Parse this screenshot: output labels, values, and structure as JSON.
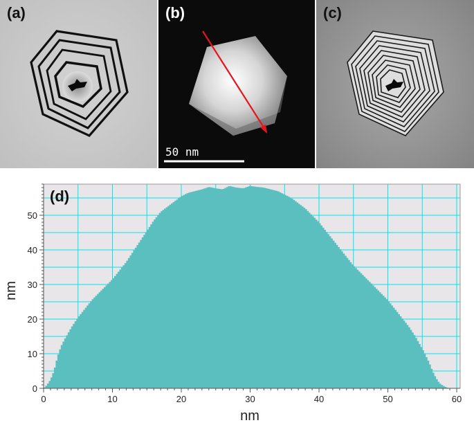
{
  "figure": {
    "panels": [
      {
        "label": "(a)",
        "kind": "holography-phase-contour",
        "label_color": "#111111"
      },
      {
        "label": "(b)",
        "kind": "haadf-stem-image",
        "label_color": "#ffffff"
      },
      {
        "label": "(c)",
        "kind": "holography-phase-contour-amplified",
        "label_color": "#111111"
      }
    ],
    "scale_bar": {
      "label": "50 nm",
      "color": "#ffffff"
    },
    "line_profile_arrow_color": "#e8141b"
  },
  "chart_data": {
    "type": "area",
    "panel_label": "(d)",
    "xlabel": "nm",
    "ylabel": "nm",
    "xlim": [
      0,
      60.5
    ],
    "ylim": [
      0,
      59
    ],
    "xticks": [
      0,
      10,
      20,
      30,
      40,
      50,
      60
    ],
    "yticks": [
      0,
      10,
      20,
      30,
      40,
      50
    ],
    "grid": true,
    "grid_color": "#00e5ee",
    "plot_background": "#e8e6e8",
    "fill_color": "#5bbfbf",
    "x": [
      0,
      0.5,
      1,
      1.5,
      2,
      2.5,
      3,
      4,
      5,
      6,
      7,
      8,
      9,
      10,
      11,
      12,
      13,
      14,
      15,
      16,
      17,
      18,
      19,
      20,
      21,
      22,
      23,
      24,
      25,
      26,
      27,
      28,
      29,
      30,
      31,
      32,
      33,
      34,
      35,
      36,
      37,
      38,
      39,
      40,
      41,
      42,
      43,
      44,
      45,
      46,
      47,
      48,
      49,
      50,
      51,
      52,
      53,
      54,
      55,
      56,
      56.5,
      57,
      57.5,
      58,
      58.5,
      59,
      59.5
    ],
    "y": [
      0,
      1,
      2.5,
      5,
      9,
      12,
      14,
      17.5,
      20.5,
      23,
      25.5,
      27.5,
      29.5,
      31.5,
      34,
      36.5,
      39.5,
      42.5,
      45.5,
      48.5,
      51,
      52.5,
      54,
      55.5,
      56.5,
      57,
      57.5,
      58.2,
      57.8,
      57.5,
      58.5,
      58,
      57.8,
      58.5,
      58.2,
      58,
      57.5,
      57,
      56,
      55,
      53.5,
      52,
      50,
      48,
      45.5,
      43,
      40.5,
      38,
      35.5,
      33.5,
      31.5,
      29.5,
      27.5,
      25.5,
      23,
      20.5,
      18,
      15,
      11.5,
      7.5,
      5,
      3,
      1.5,
      0.8,
      0.3,
      0,
      0
    ]
  }
}
